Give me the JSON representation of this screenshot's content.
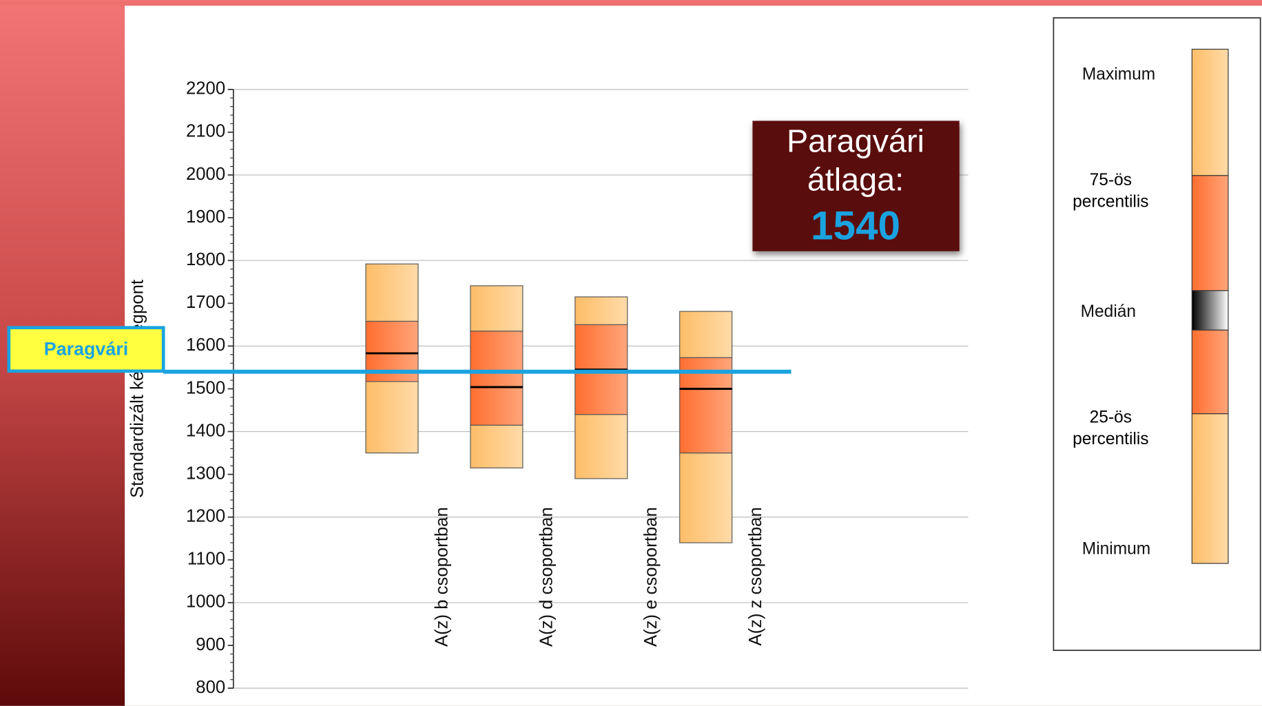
{
  "chart_data": {
    "type": "box",
    "y_axis_label": "Standardizált képességpont",
    "categories": [
      "A(z) b csoportban",
      "A(z) d csoportban",
      "A(z) e csoportban",
      "A(z) z csoportban"
    ],
    "series": [
      {
        "min": [
          1350,
          1315,
          1290,
          1140
        ],
        "q1": [
          1517,
          1415,
          1440,
          1350
        ],
        "median": [
          1583,
          1504,
          1545,
          1500
        ],
        "q3": [
          1658,
          1635,
          1650,
          1573
        ],
        "max": [
          1792,
          1741,
          1715,
          1681
        ]
      }
    ],
    "colors": {
      "outer": "#fdbf6f",
      "inner": "#ff7a3c",
      "line": "#1aa3e0"
    },
    "ylim": [
      800,
      2200
    ],
    "yticks": [
      800,
      900,
      1000,
      1100,
      1200,
      1300,
      1400,
      1500,
      1600,
      1700,
      1800,
      1900,
      2000,
      2100,
      2200
    ],
    "ygrid": [
      800,
      1000,
      1200,
      1400,
      1600,
      1800,
      2000,
      2200
    ],
    "reference_line": {
      "label": "Paragvári",
      "value": 1540
    },
    "annotation": {
      "text": [
        "Paragvári",
        "átlaga:"
      ],
      "value": 1540
    },
    "legend": [
      "Maximum",
      "75-ös percentilis",
      "Medián",
      "25-ös percentilis",
      "Minimum"
    ]
  }
}
